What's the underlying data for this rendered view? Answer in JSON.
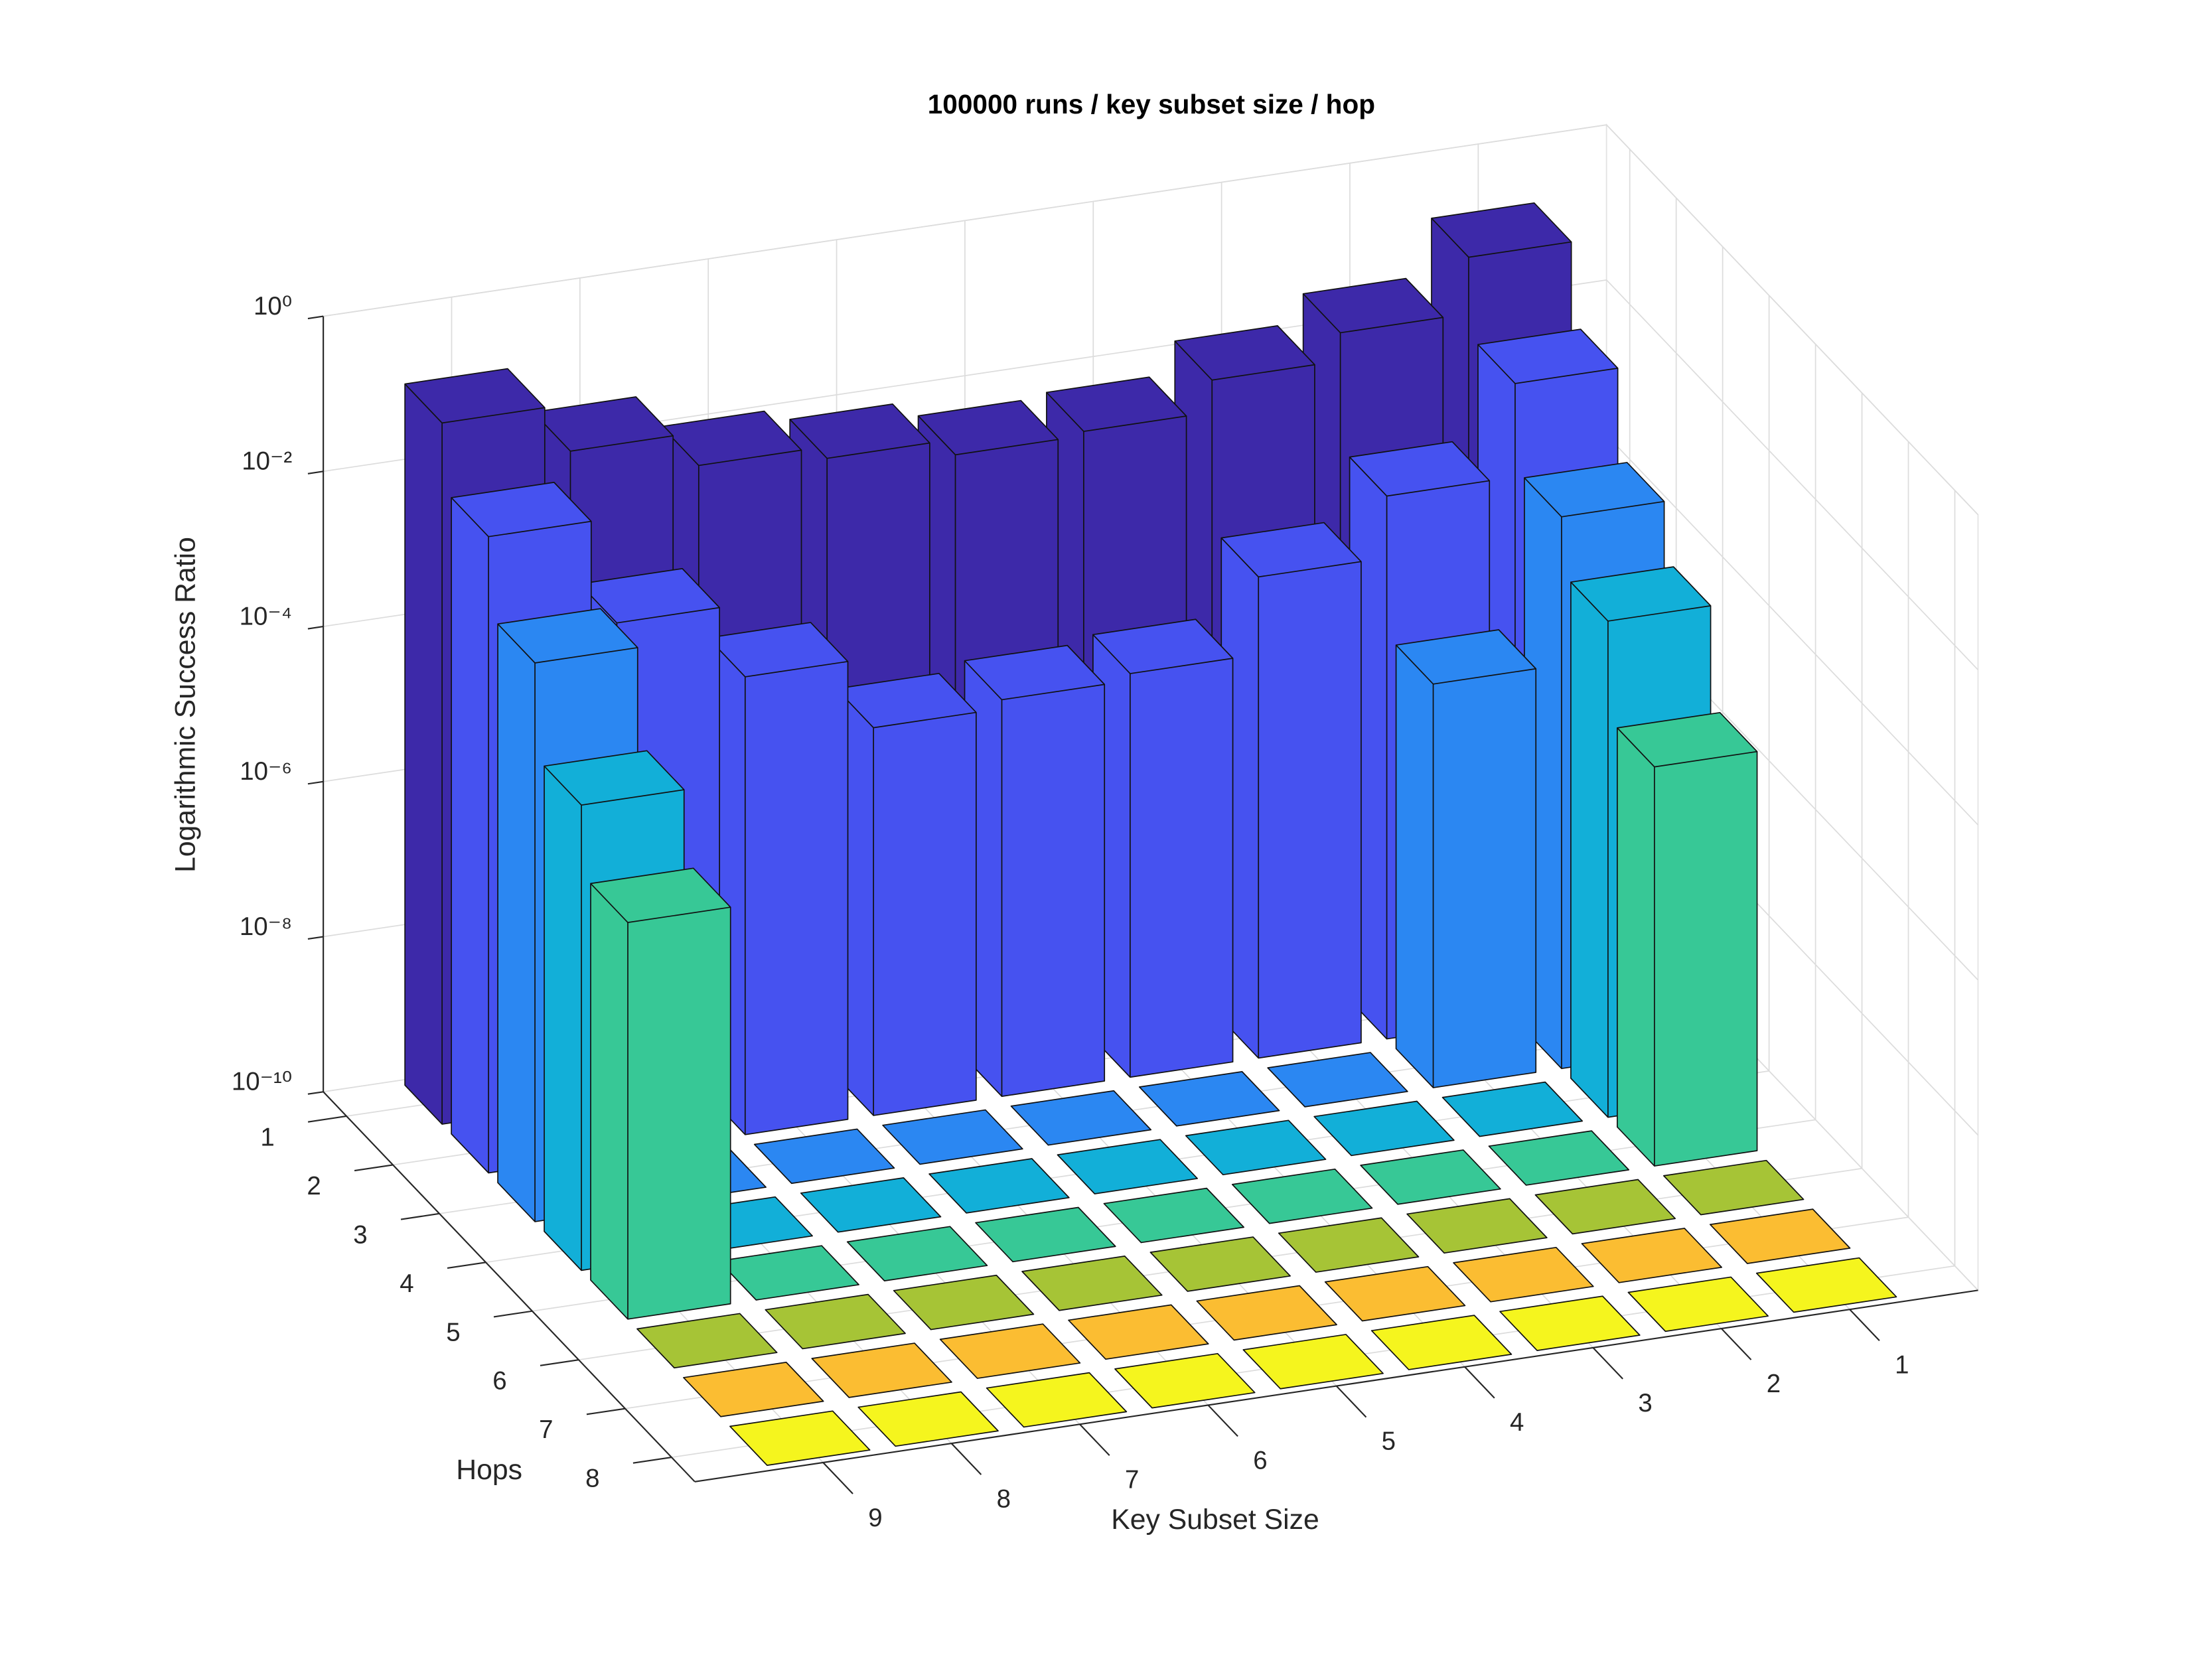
{
  "chart_data": {
    "type": "bar3",
    "title": "100000 runs / key subset size / hop",
    "xlabel": "Key Subset Size",
    "ylabel": "Hops",
    "zlabel": "Logarithmic Success Ratio",
    "x": [
      1,
      2,
      3,
      4,
      5,
      6,
      7,
      8,
      9
    ],
    "y": [
      1,
      2,
      3,
      4,
      5,
      6,
      7,
      8
    ],
    "xlim": [
      0,
      10
    ],
    "ylim": [
      0.5,
      8.5
    ],
    "zlim": [
      1e-10,
      1
    ],
    "zscale": "log",
    "zticks": [
      {
        "value": 1e-10,
        "label": "10⁻¹⁰"
      },
      {
        "value": 1e-08,
        "label": "10⁻⁸"
      },
      {
        "value": 1e-06,
        "label": "10⁻⁶"
      },
      {
        "value": 0.0001,
        "label": "10⁻⁴"
      },
      {
        "value": 0.01,
        "label": "10⁻²"
      },
      {
        "value": 1,
        "label": "10⁰"
      }
    ],
    "grid": true,
    "row_colors": [
      "#3d29a9",
      "#4652f0",
      "#2b87f2",
      "#12afd8",
      "#37c896",
      "#a6c436",
      "#fbbd32",
      "#f5f51e"
    ],
    "values": [
      [
        0.16,
        0.03,
        0.013,
        0.005,
        0.0044,
        0.007,
        0.01,
        0.027,
        0.11
      ],
      [
        0.016,
        0.001,
        0.00016,
        1.6e-05,
        1.3e-05,
        1e-05,
        8e-05,
        0.0007,
        0.016
      ],
      [
        0.0013,
        1.6e-05,
        0,
        0,
        0,
        0,
        0,
        0,
        0.0016
      ],
      [
        0.00025,
        0,
        0,
        0,
        0,
        0,
        0,
        0,
        0.0001
      ],
      [
        1.4e-05,
        0,
        0,
        0,
        0,
        0,
        0,
        0,
        1.3e-05
      ],
      [
        0,
        0,
        0,
        0,
        0,
        0,
        0,
        0,
        0
      ],
      [
        0,
        0,
        0,
        0,
        0,
        0,
        0,
        0,
        0
      ],
      [
        0,
        0,
        0,
        0,
        0,
        0,
        0,
        0,
        0
      ]
    ]
  }
}
